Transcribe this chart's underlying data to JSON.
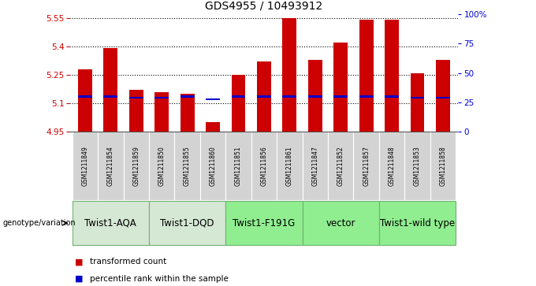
{
  "title": "GDS4955 / 10493912",
  "samples": [
    "GSM1211849",
    "GSM1211854",
    "GSM1211859",
    "GSM1211850",
    "GSM1211855",
    "GSM1211860",
    "GSM1211851",
    "GSM1211856",
    "GSM1211861",
    "GSM1211847",
    "GSM1211852",
    "GSM1211857",
    "GSM1211848",
    "GSM1211853",
    "GSM1211858"
  ],
  "bar_tops": [
    5.28,
    5.39,
    5.17,
    5.16,
    5.15,
    5.0,
    5.25,
    5.32,
    5.55,
    5.33,
    5.42,
    5.54,
    5.54,
    5.26,
    5.33
  ],
  "blue_values": [
    5.135,
    5.135,
    5.13,
    5.13,
    5.135,
    5.12,
    5.135,
    5.135,
    5.135,
    5.135,
    5.135,
    5.135,
    5.135,
    5.13,
    5.13
  ],
  "bar_base": 4.95,
  "ylim": [
    4.95,
    5.57
  ],
  "y_ticks_left": [
    4.95,
    5.1,
    5.25,
    5.4,
    5.55
  ],
  "y_ticks_right_vals": [
    0,
    25,
    50,
    75,
    100
  ],
  "y_ticks_right_labels": [
    "0",
    "25",
    "50",
    "75",
    "100%"
  ],
  "groups": [
    {
      "label": "Twist1-AQA",
      "start": 0,
      "end": 3,
      "color": "#d5e8d4"
    },
    {
      "label": "Twist1-DQD",
      "start": 3,
      "end": 6,
      "color": "#d5e8d4"
    },
    {
      "label": "Twist1-F191G",
      "start": 6,
      "end": 9,
      "color": "#90ee90"
    },
    {
      "label": "vector",
      "start": 9,
      "end": 12,
      "color": "#90ee90"
    },
    {
      "label": "Twist1-wild type",
      "start": 12,
      "end": 15,
      "color": "#90ee90"
    }
  ],
  "bar_color": "#cc0000",
  "blue_color": "#0000cc",
  "sample_bg_color": "#d3d3d3",
  "genotype_label": "genotype/variation",
  "legend_items": [
    {
      "color": "#cc0000",
      "label": "transformed count"
    },
    {
      "color": "#0000cc",
      "label": "percentile rank within the sample"
    }
  ],
  "dotted_line_color": "#000000",
  "title_fontsize": 10,
  "tick_fontsize": 7.5,
  "sample_fontsize": 5.5,
  "group_fontsize": 8.5
}
